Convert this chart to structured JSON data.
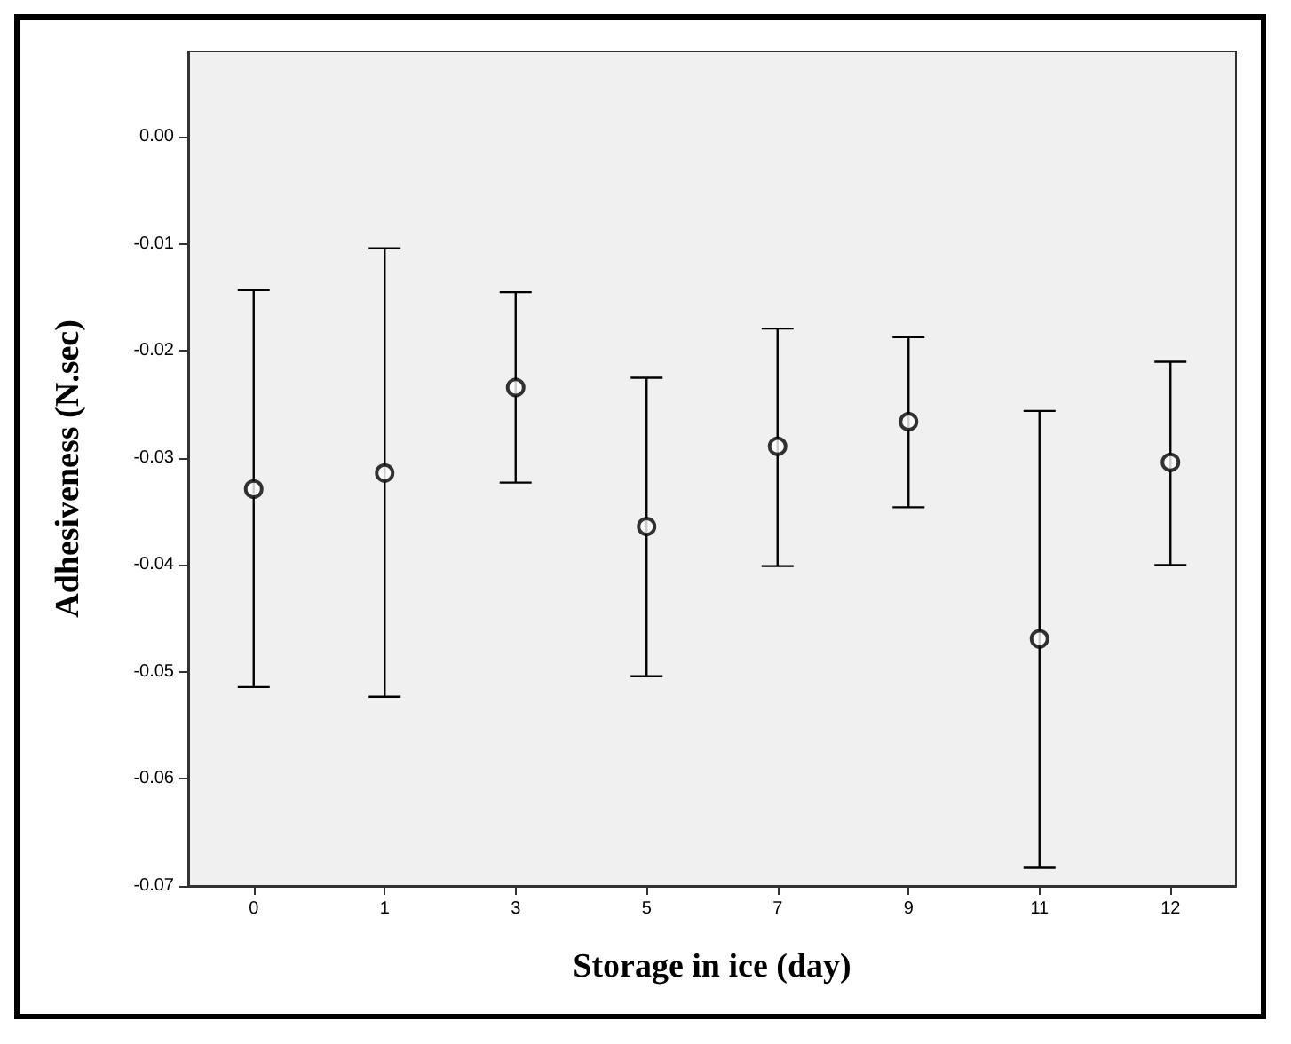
{
  "chart_data": {
    "type": "scatter",
    "xlabel": "Storage in ice (day)",
    "ylabel": "Adhesiveness (N.sec)",
    "categories": [
      "0",
      "1",
      "3",
      "5",
      "7",
      "9",
      "11",
      "12"
    ],
    "values": [
      -0.0329,
      -0.0314,
      -0.0234,
      -0.0364,
      -0.0289,
      -0.0266,
      -0.0469,
      -0.0304
    ],
    "errors": [
      [
        -0.0514,
        -0.0143
      ],
      [
        -0.0523,
        -0.0104
      ],
      [
        -0.0323,
        -0.0145
      ],
      [
        -0.0504,
        -0.0225
      ],
      [
        -0.0401,
        -0.0179
      ],
      [
        -0.0346,
        -0.0187
      ],
      [
        -0.0683,
        -0.0256
      ],
      [
        -0.04,
        -0.021
      ]
    ],
    "color": "#000000",
    "marker": "circle",
    "grid": false,
    "ylim": [
      -0.07,
      0.008
    ],
    "yticks": [
      {
        "value": 0,
        "label": "0.00"
      },
      {
        "value": -0.01,
        "label": "-0.01"
      },
      {
        "value": -0.02,
        "label": "-0.02"
      },
      {
        "value": -0.03,
        "label": "-0.03"
      },
      {
        "value": -0.04,
        "label": "-0.04"
      },
      {
        "value": -0.05,
        "label": "-0.05"
      },
      {
        "value": -0.06,
        "label": "-0.06"
      },
      {
        "value": -0.07,
        "label": "-0.07"
      }
    ]
  }
}
